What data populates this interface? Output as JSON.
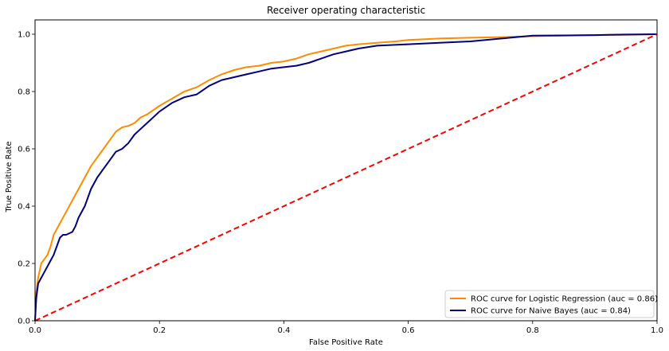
{
  "chart_data": {
    "type": "line",
    "title": "Receiver operating characteristic",
    "xlabel": "False Positive Rate",
    "ylabel": "True Positive Rate",
    "xlim": [
      0,
      1
    ],
    "ylim": [
      0,
      1.05
    ],
    "xticks": [
      0,
      0.2,
      0.4,
      0.6,
      0.8,
      1.0
    ],
    "xtick_labels": [
      "0.0",
      "0.2",
      "0.4",
      "0.6",
      "0.8",
      "1.0"
    ],
    "yticks": [
      0,
      0.2,
      0.4,
      0.6,
      0.8,
      1.0
    ],
    "ytick_labels": [
      "0.0",
      "0.2",
      "0.4",
      "0.6",
      "0.8",
      "1.0"
    ],
    "grid": false,
    "legend_position": "lower-right",
    "series": [
      {
        "name": "ROC curve for Logistic Regression (auc = 0.86)",
        "color": "#ff8c00",
        "style": "solid",
        "x": [
          0.0,
          0.002,
          0.005,
          0.01,
          0.015,
          0.02,
          0.025,
          0.03,
          0.04,
          0.05,
          0.06,
          0.07,
          0.08,
          0.09,
          0.1,
          0.11,
          0.12,
          0.13,
          0.14,
          0.15,
          0.16,
          0.17,
          0.18,
          0.2,
          0.22,
          0.24,
          0.26,
          0.28,
          0.3,
          0.32,
          0.34,
          0.36,
          0.38,
          0.4,
          0.42,
          0.44,
          0.46,
          0.48,
          0.5,
          0.52,
          0.55,
          0.58,
          0.6,
          0.62,
          0.65,
          0.7,
          0.75,
          0.8,
          0.85,
          0.9,
          0.95,
          1.0
        ],
        "y": [
          0.0,
          0.1,
          0.15,
          0.2,
          0.215,
          0.23,
          0.26,
          0.3,
          0.34,
          0.38,
          0.42,
          0.46,
          0.5,
          0.54,
          0.57,
          0.6,
          0.63,
          0.66,
          0.675,
          0.68,
          0.69,
          0.71,
          0.72,
          0.75,
          0.775,
          0.8,
          0.815,
          0.84,
          0.86,
          0.875,
          0.885,
          0.89,
          0.9,
          0.905,
          0.915,
          0.93,
          0.94,
          0.95,
          0.96,
          0.965,
          0.97,
          0.975,
          0.98,
          0.982,
          0.985,
          0.988,
          0.99,
          0.993,
          0.995,
          0.997,
          0.998,
          1.0
        ]
      },
      {
        "name": "ROC curve for Naive Bayes (auc = 0.84)",
        "color": "#000080",
        "style": "solid",
        "x": [
          0.0,
          0.002,
          0.005,
          0.01,
          0.015,
          0.02,
          0.025,
          0.03,
          0.035,
          0.04,
          0.045,
          0.05,
          0.06,
          0.065,
          0.07,
          0.08,
          0.09,
          0.1,
          0.11,
          0.12,
          0.13,
          0.14,
          0.15,
          0.16,
          0.17,
          0.18,
          0.2,
          0.22,
          0.24,
          0.26,
          0.28,
          0.3,
          0.32,
          0.34,
          0.36,
          0.38,
          0.4,
          0.42,
          0.44,
          0.46,
          0.48,
          0.5,
          0.52,
          0.55,
          0.6,
          0.65,
          0.7,
          0.75,
          0.8,
          0.85,
          0.9,
          0.95,
          1.0
        ],
        "y": [
          0.0,
          0.08,
          0.13,
          0.15,
          0.17,
          0.19,
          0.21,
          0.23,
          0.26,
          0.29,
          0.3,
          0.3,
          0.31,
          0.33,
          0.36,
          0.4,
          0.46,
          0.5,
          0.53,
          0.56,
          0.59,
          0.6,
          0.62,
          0.65,
          0.67,
          0.69,
          0.73,
          0.76,
          0.78,
          0.79,
          0.82,
          0.84,
          0.85,
          0.86,
          0.87,
          0.88,
          0.885,
          0.89,
          0.9,
          0.915,
          0.93,
          0.94,
          0.95,
          0.96,
          0.965,
          0.97,
          0.975,
          0.985,
          0.995,
          0.996,
          0.997,
          0.999,
          1.0
        ]
      },
      {
        "name": "",
        "color": "#ff0000",
        "style": "dashed",
        "x": [
          0,
          1
        ],
        "y": [
          0,
          1
        ]
      }
    ]
  }
}
